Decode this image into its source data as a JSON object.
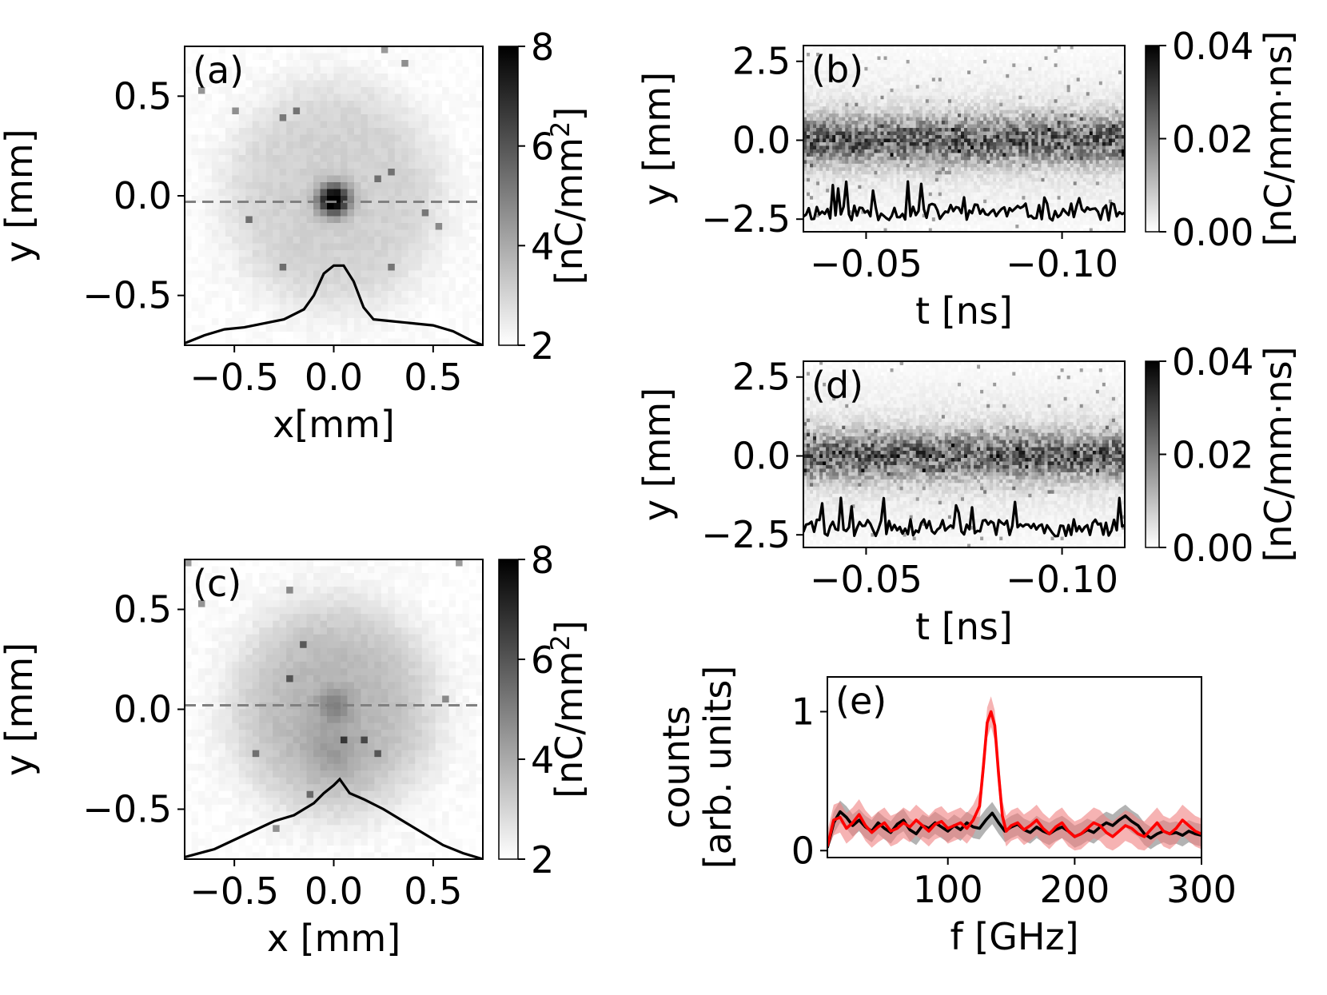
{
  "chart_data": [
    {
      "id": "a",
      "type": "heatmap",
      "panel_label": "(a)",
      "xlabel": "x[mm]",
      "ylabel": "y [mm]",
      "xlim": [
        -0.75,
        0.75
      ],
      "ylim": [
        -0.75,
        0.75
      ],
      "xticks": [
        -0.5,
        0.0,
        0.5
      ],
      "yticks": [
        -0.5,
        0.0,
        0.5
      ],
      "xtick_labels": [
        "−0.5",
        "0.0",
        "0.5"
      ],
      "ytick_labels": [
        "−0.5",
        "0.0",
        "0.5"
      ],
      "colorbar": {
        "range": [
          2,
          8
        ],
        "ticks": [
          2,
          4,
          6,
          8
        ],
        "tick_labels": [
          "2",
          "4",
          "6",
          "8"
        ],
        "label": "[nC/mm²]",
        "cmap": "gray_r"
      },
      "dashed_line_y": -0.03,
      "profile": {
        "x": [
          -0.75,
          -0.65,
          -0.55,
          -0.45,
          -0.35,
          -0.25,
          -0.15,
          -0.1,
          -0.05,
          0.0,
          0.05,
          0.1,
          0.15,
          0.2,
          0.3,
          0.4,
          0.5,
          0.6,
          0.7,
          0.75
        ],
        "y": [
          -0.74,
          -0.7,
          -0.67,
          -0.66,
          -0.64,
          -0.62,
          -0.57,
          -0.5,
          -0.39,
          -0.35,
          -0.35,
          -0.43,
          -0.56,
          -0.62,
          -0.63,
          -0.64,
          -0.65,
          -0.68,
          -0.73,
          -0.75
        ]
      }
    },
    {
      "id": "c",
      "type": "heatmap",
      "panel_label": "(c)",
      "xlabel": "x [mm]",
      "ylabel": "y [mm]",
      "xlim": [
        -0.75,
        0.75
      ],
      "ylim": [
        -0.75,
        0.75
      ],
      "xticks": [
        -0.5,
        0.0,
        0.5
      ],
      "yticks": [
        -0.5,
        0.0,
        0.5
      ],
      "xtick_labels": [
        "−0.5",
        "0.0",
        "0.5"
      ],
      "ytick_labels": [
        "−0.5",
        "0.0",
        "0.5"
      ],
      "colorbar": {
        "range": [
          2,
          8
        ],
        "ticks": [
          2,
          4,
          6,
          8
        ],
        "tick_labels": [
          "2",
          "4",
          "6",
          "8"
        ],
        "label": "[nC/mm²]",
        "cmap": "gray_r"
      },
      "dashed_line_y": 0.02,
      "profile": {
        "x": [
          -0.75,
          -0.6,
          -0.45,
          -0.3,
          -0.2,
          -0.1,
          -0.05,
          0.0,
          0.03,
          0.08,
          0.15,
          0.25,
          0.35,
          0.45,
          0.55,
          0.65,
          0.75
        ],
        "y": [
          -0.74,
          -0.7,
          -0.63,
          -0.56,
          -0.53,
          -0.47,
          -0.42,
          -0.38,
          -0.35,
          -0.42,
          -0.45,
          -0.5,
          -0.56,
          -0.62,
          -0.68,
          -0.72,
          -0.75
        ]
      }
    },
    {
      "id": "b",
      "type": "heatmap",
      "panel_label": "(b)",
      "xlabel": "t [ns]",
      "ylabel": "y [mm]",
      "xlim": [
        -0.034,
        -0.116
      ],
      "ylim": [
        -2.9,
        3.0
      ],
      "xticks": [
        -0.05,
        -0.1
      ],
      "yticks": [
        -2.5,
        0.0,
        2.5
      ],
      "xtick_labels": [
        "−0.05",
        "−0.10"
      ],
      "ytick_labels": [
        "−2.5",
        "0.0",
        "2.5"
      ],
      "colorbar": {
        "range": [
          0.0,
          0.04
        ],
        "ticks": [
          0.0,
          0.02,
          0.04
        ],
        "tick_labels": [
          "0.00",
          "0.02",
          "0.04"
        ],
        "label": "[nC/mm·ns]",
        "cmap": "gray_r"
      },
      "band_center_y": 0.0,
      "profile_baseline_y": -2.3,
      "profile_seed": 11
    },
    {
      "id": "d",
      "type": "heatmap",
      "panel_label": "(d)",
      "xlabel": "t [ns]",
      "ylabel": "y [mm]",
      "xlim": [
        -0.034,
        -0.116
      ],
      "ylim": [
        -2.9,
        3.0
      ],
      "xticks": [
        -0.05,
        -0.1
      ],
      "yticks": [
        -2.5,
        0.0,
        2.5
      ],
      "xtick_labels": [
        "−0.05",
        "−0.10"
      ],
      "ytick_labels": [
        "−2.5",
        "0.0",
        "2.5"
      ],
      "colorbar": {
        "range": [
          0.0,
          0.04
        ],
        "ticks": [
          0.0,
          0.02,
          0.04
        ],
        "tick_labels": [
          "0.00",
          "0.02",
          "0.04"
        ],
        "label": "[nC/mm·ns]",
        "cmap": "gray_r"
      },
      "band_center_y": 0.0,
      "profile_baseline_y": -2.3,
      "profile_seed": 29
    },
    {
      "id": "e",
      "type": "line",
      "panel_label": "(e)",
      "xlabel": "f [GHz]",
      "ylabel_lines": [
        "counts",
        "[arb. units]"
      ],
      "xlim": [
        5,
        300
      ],
      "ylim": [
        -0.05,
        1.25
      ],
      "xticks": [
        100,
        200,
        300
      ],
      "yticks": [
        0,
        1
      ],
      "xtick_labels": [
        "100",
        "200",
        "300"
      ],
      "ytick_labels": [
        "0",
        "1"
      ],
      "series": [
        {
          "color": "#000000",
          "band_color": "#808080",
          "x": [
            5,
            10,
            15,
            20,
            25,
            30,
            35,
            40,
            45,
            50,
            55,
            60,
            65,
            70,
            75,
            80,
            85,
            90,
            95,
            100,
            105,
            110,
            115,
            120,
            125,
            130,
            135,
            140,
            145,
            150,
            155,
            160,
            165,
            170,
            175,
            180,
            185,
            190,
            195,
            200,
            205,
            210,
            215,
            220,
            225,
            230,
            235,
            240,
            245,
            250,
            255,
            260,
            265,
            270,
            275,
            280,
            285,
            290,
            295,
            300
          ],
          "y": [
            0.02,
            0.2,
            0.28,
            0.24,
            0.18,
            0.22,
            0.17,
            0.14,
            0.2,
            0.16,
            0.13,
            0.19,
            0.22,
            0.15,
            0.12,
            0.18,
            0.16,
            0.2,
            0.17,
            0.14,
            0.18,
            0.15,
            0.2,
            0.17,
            0.16,
            0.22,
            0.27,
            0.2,
            0.14,
            0.17,
            0.19,
            0.15,
            0.13,
            0.17,
            0.14,
            0.12,
            0.15,
            0.17,
            0.14,
            0.1,
            0.12,
            0.15,
            0.13,
            0.17,
            0.2,
            0.18,
            0.22,
            0.25,
            0.21,
            0.18,
            0.12,
            0.09,
            0.12,
            0.14,
            0.12,
            0.13,
            0.11,
            0.14,
            0.12,
            0.11
          ],
          "err": 0.08
        },
        {
          "color": "#ff0000",
          "band_color": "#f08080",
          "x": [
            5,
            10,
            15,
            20,
            25,
            30,
            35,
            40,
            45,
            50,
            55,
            60,
            65,
            70,
            75,
            80,
            85,
            90,
            95,
            100,
            105,
            110,
            115,
            120,
            125,
            128,
            131,
            134,
            137,
            140,
            143,
            146,
            150,
            155,
            160,
            165,
            170,
            175,
            180,
            185,
            190,
            195,
            200,
            205,
            210,
            215,
            220,
            225,
            230,
            235,
            240,
            245,
            250,
            255,
            260,
            265,
            270,
            275,
            280,
            285,
            290,
            295,
            300
          ],
          "y": [
            0.03,
            0.22,
            0.24,
            0.16,
            0.2,
            0.26,
            0.18,
            0.13,
            0.17,
            0.2,
            0.14,
            0.16,
            0.2,
            0.17,
            0.22,
            0.18,
            0.14,
            0.19,
            0.21,
            0.16,
            0.18,
            0.2,
            0.16,
            0.22,
            0.32,
            0.6,
            0.92,
            1.0,
            0.9,
            0.55,
            0.25,
            0.14,
            0.18,
            0.2,
            0.15,
            0.18,
            0.22,
            0.16,
            0.12,
            0.17,
            0.2,
            0.14,
            0.1,
            0.12,
            0.16,
            0.2,
            0.18,
            0.13,
            0.1,
            0.14,
            0.18,
            0.16,
            0.12,
            0.1,
            0.15,
            0.2,
            0.14,
            0.12,
            0.16,
            0.22,
            0.18,
            0.14,
            0.12
          ],
          "err": 0.11
        }
      ]
    }
  ]
}
